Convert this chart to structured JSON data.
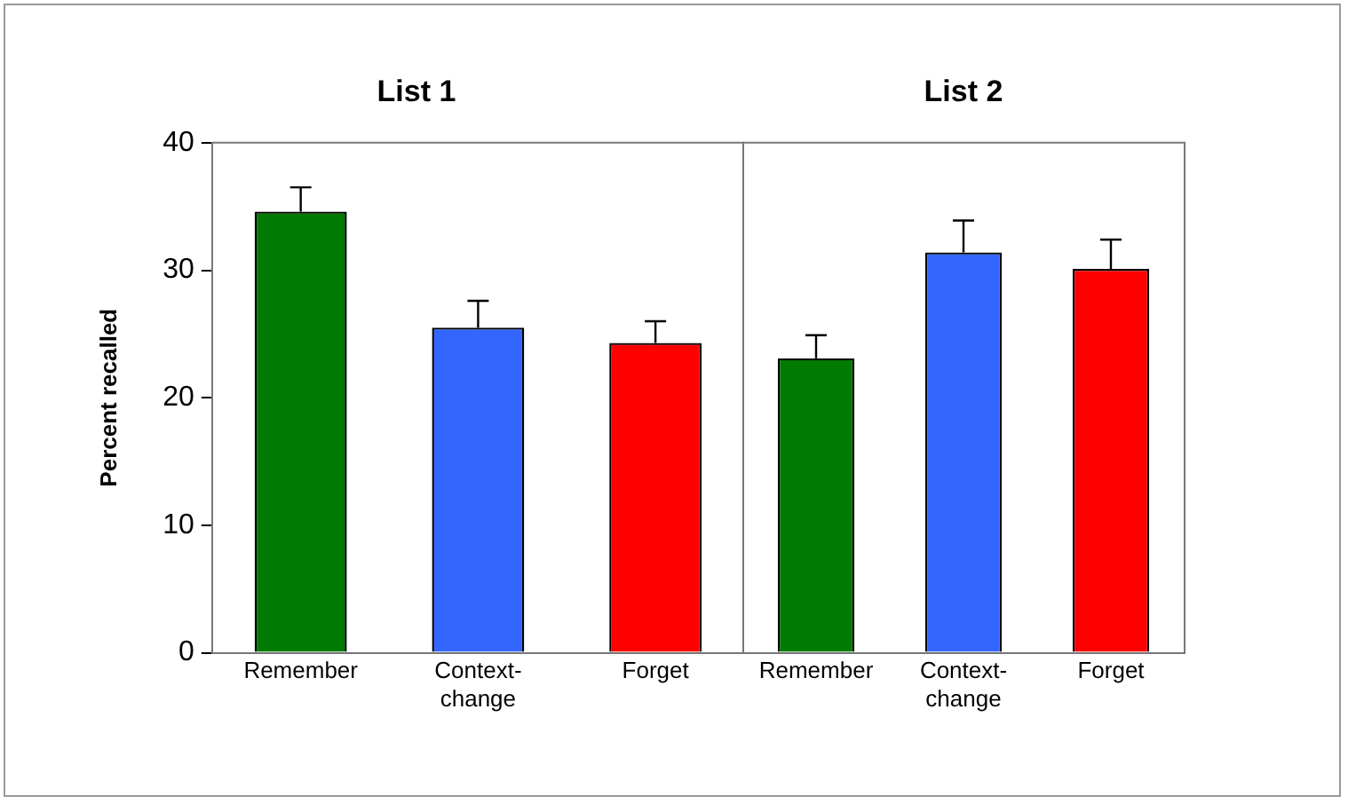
{
  "chart_data": [
    {
      "type": "bar",
      "title": "List 1",
      "ylabel": "Percent recalled",
      "categories": [
        "Remember",
        "Context-change",
        "Forget"
      ],
      "values": [
        34.6,
        25.5,
        24.3
      ],
      "colors": [
        "#007a00",
        "#3366ff",
        "#ff0000"
      ],
      "errors": [
        [
          34.6,
          36.5
        ],
        [
          25.5,
          27.6
        ],
        [
          24.3,
          26.0
        ]
      ],
      "ylim": [
        0,
        40
      ],
      "yticks": [
        0,
        10,
        20,
        30,
        40
      ],
      "grid": false,
      "legend": false
    },
    {
      "type": "bar",
      "title": "List 2",
      "categories": [
        "Remember",
        "Context-change",
        "Forget"
      ],
      "values": [
        23.1,
        31.4,
        30.1
      ],
      "colors": [
        "#007a00",
        "#3366ff",
        "#ff0000"
      ],
      "errors": [
        [
          23.1,
          24.9
        ],
        [
          31.4,
          33.9
        ],
        [
          30.1,
          32.4
        ]
      ],
      "ylim": [
        0,
        40
      ],
      "yticks": [
        0,
        10,
        20,
        30,
        40
      ],
      "grid": false,
      "legend": false,
      "tick_labels": "x"
    }
  ]
}
